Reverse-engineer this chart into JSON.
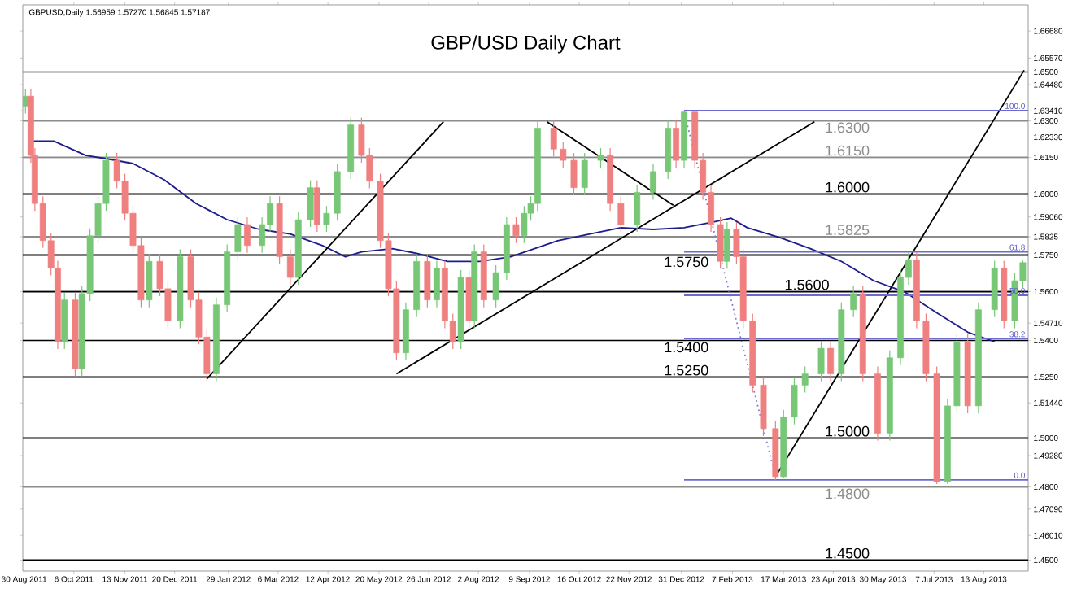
{
  "chart_data": {
    "type": "candlestick",
    "title": "GBP/USD Daily Chart",
    "annotations": [
      "GBPUSD,Daily  1.56959 1.57270 1.56845 1.57187",
      {
        "text": "100.0",
        "x": "2013-09-14",
        "y": 1.6342
      },
      {
        "text": "61.8",
        "x": "2013-09-14",
        "y": 1.5763
      },
      {
        "text": "50.0",
        "x": "2013-09-14",
        "y": 1.5585
      },
      {
        "text": "38.2",
        "x": "2013-09-14",
        "y": 1.5407
      },
      {
        "text": "0.0",
        "x": "2013-09-14",
        "y": 1.4829
      }
    ],
    "marker": "none",
    "xlim": [
      "2011-08-29",
      "2013-09-15"
    ],
    "ylim": [
      1.4455,
      1.6775
    ],
    "xticks": [
      {
        "value": "2011-08-30",
        "label": "30 Aug 2011"
      },
      {
        "value": "2011-10-06",
        "label": "6 Oct 2011"
      },
      {
        "value": "2011-11-13",
        "label": "13 Nov 2011"
      },
      {
        "value": "2011-12-20",
        "label": "20 Dec 2011"
      },
      {
        "value": "2012-01-29",
        "label": "29 Jan 2012"
      },
      {
        "value": "2012-03-06",
        "label": "6 Mar 2012"
      },
      {
        "value": "2012-04-12",
        "label": "12 Apr 2012"
      },
      {
        "value": "2012-05-20",
        "label": "20 May 2012"
      },
      {
        "value": "2012-06-26",
        "label": "26 Jun 2012"
      },
      {
        "value": "2012-08-02",
        "label": "2 Aug 2012"
      },
      {
        "value": "2012-09-09",
        "label": "9 Sep 2012"
      },
      {
        "value": "2012-10-16",
        "label": "16 Oct 2012"
      },
      {
        "value": "2012-11-22",
        "label": "22 Nov 2012"
      },
      {
        "value": "2012-12-31",
        "label": "31 Dec 2012"
      },
      {
        "value": "2013-02-07",
        "label": "7 Feb 2013"
      },
      {
        "value": "2013-03-17",
        "label": "17 Mar 2013"
      },
      {
        "value": "2013-04-23",
        "label": "23 Apr 2013"
      },
      {
        "value": "2013-05-30",
        "label": "30 May 2013"
      },
      {
        "value": "2013-07-07",
        "label": "7 Jul 2013"
      },
      {
        "value": "2013-08-13",
        "label": "13 Aug 2013"
      }
    ],
    "yticks": [
      {
        "value": 1.6668,
        "label": "1.66680"
      },
      {
        "value": 1.6557,
        "label": "1.65570"
      },
      {
        "value": 1.65,
        "label": "1.6500"
      },
      {
        "value": 1.6448,
        "label": "1.64480"
      },
      {
        "value": 1.6341,
        "label": "1.63410"
      },
      {
        "value": 1.63,
        "label": "1.6300"
      },
      {
        "value": 1.6233,
        "label": "1.62330"
      },
      {
        "value": 1.615,
        "label": "1.6150"
      },
      {
        "value": 1.6,
        "label": "1.6000"
      },
      {
        "value": 1.5906,
        "label": "1.59060"
      },
      {
        "value": 1.5825,
        "label": "1.5825"
      },
      {
        "value": 1.575,
        "label": "1.5750"
      },
      {
        "value": 1.56,
        "label": "1.5600"
      },
      {
        "value": 1.5471,
        "label": "1.54710"
      },
      {
        "value": 1.54,
        "label": "1.5400"
      },
      {
        "value": 1.525,
        "label": "1.5250"
      },
      {
        "value": 1.5144,
        "label": "1.51440"
      },
      {
        "value": 1.5,
        "label": "1.5000"
      },
      {
        "value": 1.4928,
        "label": "1.49280"
      },
      {
        "value": 1.48,
        "label": "1.4800"
      },
      {
        "value": 1.4709,
        "label": "1.47090"
      },
      {
        "value": 1.4601,
        "label": "1.46010"
      },
      {
        "value": 1.45,
        "label": "1.4500"
      }
    ],
    "x": [
      "2011-08-31",
      "2011-09-04",
      "2011-09-07",
      "2011-09-13",
      "2011-09-19",
      "2011-09-24",
      "2011-09-29",
      "2011-10-07",
      "2011-10-12",
      "2011-10-18",
      "2011-10-24",
      "2011-10-30",
      "2011-11-07",
      "2011-11-13",
      "2011-11-19",
      "2011-11-25",
      "2011-12-01",
      "2011-12-09",
      "2011-12-15",
      "2011-12-24",
      "2012-01-01",
      "2012-01-07",
      "2012-01-13",
      "2012-01-20",
      "2012-01-28",
      "2012-02-05",
      "2012-02-12",
      "2012-02-23",
      "2012-02-29",
      "2012-03-07",
      "2012-03-15",
      "2012-03-21",
      "2012-03-30",
      "2012-04-04",
      "2012-04-11",
      "2012-04-19",
      "2012-04-29",
      "2012-05-07",
      "2012-05-13",
      "2012-05-21",
      "2012-05-27",
      "2012-06-02",
      "2012-06-09",
      "2012-06-17",
      "2012-06-25",
      "2012-07-02",
      "2012-07-08",
      "2012-07-14",
      "2012-07-20",
      "2012-07-26",
      "2012-07-30",
      "2012-08-06",
      "2012-08-15",
      "2012-08-23",
      "2012-08-30",
      "2012-09-05",
      "2012-09-10",
      "2012-09-15",
      "2012-09-27",
      "2012-10-04",
      "2012-10-12",
      "2012-10-20",
      "2012-11-01",
      "2012-11-08",
      "2012-11-16",
      "2012-11-28",
      "2012-12-10",
      "2012-12-21",
      "2012-12-27",
      "2013-01-02",
      "2013-01-10",
      "2013-01-16",
      "2013-01-22",
      "2013-01-29",
      "2013-02-03",
      "2013-02-10",
      "2013-02-15",
      "2013-02-22",
      "2013-03-02",
      "2013-03-11",
      "2013-03-17",
      "2013-03-25",
      "2013-04-02",
      "2013-04-14",
      "2013-04-21",
      "2013-04-29",
      "2013-05-08",
      "2013-05-15",
      "2013-05-26",
      "2013-06-04",
      "2013-06-12",
      "2013-06-18",
      "2013-06-24",
      "2013-07-01",
      "2013-07-09",
      "2013-07-17",
      "2013-07-24",
      "2013-08-01",
      "2013-08-09",
      "2013-08-21",
      "2013-08-28",
      "2013-09-05",
      "2013-09-11"
    ],
    "ohlc": [
      [
        1.636,
        1.6431,
        1.633,
        1.6401
      ],
      [
        1.6401,
        1.6431,
        1.6128,
        1.6158
      ],
      [
        1.6158,
        1.6188,
        1.5931,
        1.5961
      ],
      [
        1.5961,
        1.5991,
        1.5779,
        1.5809
      ],
      [
        1.5809,
        1.5839,
        1.5667,
        1.5697
      ],
      [
        1.5697,
        1.5727,
        1.5365,
        1.5395
      ],
      [
        1.5395,
        1.5596,
        1.5365,
        1.5566
      ],
      [
        1.5566,
        1.5596,
        1.5253,
        1.5283
      ],
      [
        1.5283,
        1.5622,
        1.5253,
        1.5592
      ],
      [
        1.5592,
        1.5859,
        1.5562,
        1.5829
      ],
      [
        1.5829,
        1.5991,
        1.5799,
        1.5961
      ],
      [
        1.5961,
        1.6168,
        1.5931,
        1.6138
      ],
      [
        1.6138,
        1.6168,
        1.6023,
        1.6053
      ],
      [
        1.6053,
        1.6083,
        1.5891,
        1.5921
      ],
      [
        1.5921,
        1.5951,
        1.5759,
        1.5789
      ],
      [
        1.5789,
        1.5819,
        1.5536,
        1.5566
      ],
      [
        1.5566,
        1.5754,
        1.5536,
        1.5724
      ],
      [
        1.5724,
        1.5754,
        1.5582,
        1.5612
      ],
      [
        1.5612,
        1.5642,
        1.545,
        1.548
      ],
      [
        1.548,
        1.5773,
        1.545,
        1.5743
      ],
      [
        1.5743,
        1.5773,
        1.5536,
        1.5566
      ],
      [
        1.5566,
        1.5596,
        1.5384,
        1.5414
      ],
      [
        1.5414,
        1.5444,
        1.5233,
        1.5263
      ],
      [
        1.5263,
        1.5576,
        1.5233,
        1.5546
      ],
      [
        1.5546,
        1.5793,
        1.5516,
        1.5763
      ],
      [
        1.5763,
        1.5905,
        1.5733,
        1.5875
      ],
      [
        1.5875,
        1.5905,
        1.5759,
        1.5789
      ],
      [
        1.5789,
        1.5905,
        1.5759,
        1.5875
      ],
      [
        1.5875,
        1.5991,
        1.5845,
        1.5961
      ],
      [
        1.5961,
        1.5991,
        1.5713,
        1.5743
      ],
      [
        1.5743,
        1.5773,
        1.5628,
        1.5658
      ],
      [
        1.5658,
        1.5925,
        1.5628,
        1.5895
      ],
      [
        1.5895,
        1.6056,
        1.5865,
        1.6026
      ],
      [
        1.6026,
        1.6056,
        1.5845,
        1.5875
      ],
      [
        1.5875,
        1.5951,
        1.5845,
        1.5921
      ],
      [
        1.5921,
        1.6122,
        1.5891,
        1.6092
      ],
      [
        1.6092,
        1.6313,
        1.6062,
        1.6283
      ],
      [
        1.6283,
        1.6313,
        1.6128,
        1.6158
      ],
      [
        1.6158,
        1.6188,
        1.6023,
        1.6053
      ],
      [
        1.6053,
        1.6083,
        1.5779,
        1.5809
      ],
      [
        1.5809,
        1.5839,
        1.5582,
        1.5612
      ],
      [
        1.5612,
        1.5642,
        1.5319,
        1.5349
      ],
      [
        1.5349,
        1.5556,
        1.5319,
        1.5526
      ],
      [
        1.5526,
        1.5754,
        1.5496,
        1.5724
      ],
      [
        1.5724,
        1.5754,
        1.5536,
        1.5566
      ],
      [
        1.5566,
        1.5727,
        1.5536,
        1.5697
      ],
      [
        1.5697,
        1.5727,
        1.545,
        1.548
      ],
      [
        1.548,
        1.551,
        1.5365,
        1.5395
      ],
      [
        1.5395,
        1.5688,
        1.5365,
        1.5658
      ],
      [
        1.5658,
        1.5688,
        1.545,
        1.548
      ],
      [
        1.548,
        1.5793,
        1.545,
        1.5763
      ],
      [
        1.5763,
        1.5793,
        1.5536,
        1.5566
      ],
      [
        1.5566,
        1.5708,
        1.5536,
        1.5678
      ],
      [
        1.5678,
        1.5905,
        1.5648,
        1.5875
      ],
      [
        1.5875,
        1.5905,
        1.5799,
        1.5829
      ],
      [
        1.5829,
        1.5951,
        1.5799,
        1.5921
      ],
      [
        1.5921,
        1.5991,
        1.5891,
        1.5961
      ],
      [
        1.5961,
        1.63,
        1.5931,
        1.627
      ],
      [
        1.627,
        1.63,
        1.6154,
        1.6184
      ],
      [
        1.6184,
        1.6214,
        1.6108,
        1.6138
      ],
      [
        1.6138,
        1.6168,
        1.5996,
        1.6026
      ],
      [
        1.6026,
        1.6168,
        1.5996,
        1.6138
      ],
      [
        1.6138,
        1.6188,
        1.6108,
        1.6158
      ],
      [
        1.6158,
        1.6188,
        1.5931,
        1.5961
      ],
      [
        1.5961,
        1.5991,
        1.5845,
        1.5875
      ],
      [
        1.5875,
        1.6037,
        1.5845,
        1.6007
      ],
      [
        1.6007,
        1.6122,
        1.5977,
        1.6092
      ],
      [
        1.6092,
        1.63,
        1.6062,
        1.627
      ],
      [
        1.627,
        1.63,
        1.6108,
        1.6138
      ],
      [
        1.6138,
        1.6342,
        1.6108,
        1.6336
      ],
      [
        1.6336,
        1.6342,
        1.6108,
        1.6138
      ],
      [
        1.6138,
        1.6168,
        1.5977,
        1.6007
      ],
      [
        1.6007,
        1.6037,
        1.5845,
        1.5875
      ],
      [
        1.5875,
        1.5905,
        1.5694,
        1.5724
      ],
      [
        1.5724,
        1.5885,
        1.5694,
        1.5855
      ],
      [
        1.5855,
        1.5885,
        1.5713,
        1.5743
      ],
      [
        1.5743,
        1.5773,
        1.545,
        1.548
      ],
      [
        1.548,
        1.551,
        1.5187,
        1.5217
      ],
      [
        1.5217,
        1.5247,
        1.5009,
        1.5039
      ],
      [
        1.5039,
        1.5069,
        1.4829,
        1.4842
      ],
      [
        1.4842,
        1.5116,
        1.4835,
        1.5086
      ],
      [
        1.5086,
        1.5247,
        1.5056,
        1.5217
      ],
      [
        1.5217,
        1.5293,
        1.5187,
        1.5263
      ],
      [
        1.5263,
        1.5398,
        1.5233,
        1.5368
      ],
      [
        1.5368,
        1.5398,
        1.5233,
        1.5263
      ],
      [
        1.5263,
        1.5556,
        1.5233,
        1.5526
      ],
      [
        1.5526,
        1.5622,
        1.5496,
        1.5592
      ],
      [
        1.5592,
        1.5622,
        1.5233,
        1.5263
      ],
      [
        1.5263,
        1.5293,
        1.499,
        1.502
      ],
      [
        1.502,
        1.5359,
        1.499,
        1.5329
      ],
      [
        1.5329,
        1.5688,
        1.5299,
        1.5658
      ],
      [
        1.5658,
        1.576,
        1.5628,
        1.573
      ],
      [
        1.573,
        1.576,
        1.545,
        1.548
      ],
      [
        1.548,
        1.551,
        1.5233,
        1.5263
      ],
      [
        1.5263,
        1.5293,
        1.4812,
        1.4822
      ],
      [
        1.4822,
        1.5162,
        1.4812,
        1.5132
      ],
      [
        1.5132,
        1.5425,
        1.5102,
        1.5395
      ],
      [
        1.5395,
        1.5425,
        1.5102,
        1.5132
      ],
      [
        1.5132,
        1.5556,
        1.5102,
        1.5526
      ],
      [
        1.5526,
        1.5727,
        1.5496,
        1.5697
      ],
      [
        1.5697,
        1.5727,
        1.545,
        1.548
      ],
      [
        1.548,
        1.5675,
        1.545,
        1.5645
      ],
      [
        1.5645,
        1.5727,
        1.5615,
        1.5719
      ]
    ],
    "colors": [
      "#77c777",
      "#f08080",
      "#f08080",
      "#f08080",
      "#f08080",
      "#f08080",
      "#77c777",
      "#f08080",
      "#77c777",
      "#77c777",
      "#77c777",
      "#77c777",
      "#f08080",
      "#f08080",
      "#f08080",
      "#f08080",
      "#77c777",
      "#f08080",
      "#f08080",
      "#77c777",
      "#f08080",
      "#f08080",
      "#f08080",
      "#77c777",
      "#77c777",
      "#77c777",
      "#f08080",
      "#77c777",
      "#77c777",
      "#f08080",
      "#f08080",
      "#77c777",
      "#77c777",
      "#f08080",
      "#77c777",
      "#77c777",
      "#77c777",
      "#f08080",
      "#f08080",
      "#f08080",
      "#f08080",
      "#f08080",
      "#77c777",
      "#77c777",
      "#f08080",
      "#77c777",
      "#f08080",
      "#f08080",
      "#77c777",
      "#f08080",
      "#77c777",
      "#f08080",
      "#77c777",
      "#77c777",
      "#f08080",
      "#77c777",
      "#77c777",
      "#77c777",
      "#f08080",
      "#f08080",
      "#f08080",
      "#77c777",
      "#77c777",
      "#f08080",
      "#f08080",
      "#77c777",
      "#77c777",
      "#77c777",
      "#f08080",
      "#77c777",
      "#f08080",
      "#f08080",
      "#f08080",
      "#f08080",
      "#77c777",
      "#f08080",
      "#f08080",
      "#f08080",
      "#f08080",
      "#f08080",
      "#77c777",
      "#77c777",
      "#77c777",
      "#77c777",
      "#f08080",
      "#77c777",
      "#77c777",
      "#f08080",
      "#f08080",
      "#77c777",
      "#77c777",
      "#77c777",
      "#f08080",
      "#f08080",
      "#f08080",
      "#77c777",
      "#77c777",
      "#f08080",
      "#77c777",
      "#77c777",
      "#f08080",
      "#77c777",
      "#77c777"
    ],
    "series": [
      {
        "type": "line",
        "color": "#1c1c8c",
        "x": [
          "2011-09-04",
          "2011-09-21",
          "2011-10-15",
          "2011-10-30",
          "2011-11-19",
          "2011-12-12",
          "2012-01-05",
          "2012-01-28",
          "2012-02-21",
          "2012-03-15",
          "2012-04-08",
          "2012-04-25",
          "2012-05-07",
          "2012-05-30",
          "2012-06-17",
          "2012-07-10",
          "2012-08-03",
          "2012-08-26",
          "2012-09-30",
          "2012-10-24",
          "2012-11-16",
          "2012-12-10",
          "2013-01-02",
          "2013-01-26",
          "2013-02-06",
          "2013-02-18",
          "2013-03-14",
          "2013-04-06",
          "2013-04-29",
          "2013-05-23",
          "2013-06-15",
          "2013-07-09",
          "2013-08-01",
          "2013-08-21"
        ],
        "values": [
          1.6217,
          1.6217,
          1.6158,
          1.6145,
          1.6125,
          1.6059,
          1.5961,
          1.5895,
          1.5855,
          1.5836,
          1.5789,
          1.5743,
          1.5763,
          1.5776,
          1.5757,
          1.5724,
          1.5724,
          1.5743,
          1.5809,
          1.5836,
          1.5862,
          1.5855,
          1.5862,
          1.5888,
          1.5901,
          1.5862,
          1.5822,
          1.5776,
          1.5724,
          1.5645,
          1.5599,
          1.5513,
          1.5434,
          1.5395
        ]
      },
      {
        "type": "line",
        "color": "#000000",
        "x": [
          "2012-01-13",
          "2012-07-07"
        ],
        "values": [
          1.5243,
          1.6296
        ]
      },
      {
        "type": "line",
        "color": "#000000",
        "x": [
          "2012-06-02",
          "2013-04-09"
        ],
        "values": [
          1.5263,
          1.6296
        ]
      },
      {
        "type": "line",
        "color": "#000000",
        "x": [
          "2012-09-22",
          "2012-12-25"
        ],
        "values": [
          1.6296,
          1.5954
        ]
      },
      {
        "type": "line",
        "color": "#7b7bd6",
        "line_style": "dotted",
        "x": [
          "2013-01-02",
          "2013-03-11"
        ],
        "values": [
          1.6336,
          1.4842
        ]
      },
      {
        "type": "line",
        "color": "#000000",
        "x": [
          "2013-03-11",
          "2013-09-12"
        ],
        "values": [
          1.4842,
          1.6507
        ]
      },
      {
        "type": "line",
        "color": "#6a6ad0",
        "x": [
          "2013-01-02",
          "2013-09-15"
        ],
        "values": [
          1.6342,
          1.6342
        ]
      },
      {
        "type": "line",
        "color": "#6a6ad0",
        "x": [
          "2013-01-02",
          "2013-09-15"
        ],
        "values": [
          1.5763,
          1.5763
        ]
      },
      {
        "type": "line",
        "color": "#6a6ad0",
        "x": [
          "2013-01-02",
          "2013-09-15"
        ],
        "values": [
          1.5585,
          1.5585
        ]
      },
      {
        "type": "line",
        "color": "#6a6ad0",
        "x": [
          "2013-01-02",
          "2013-09-15"
        ],
        "values": [
          1.5407,
          1.5407
        ]
      },
      {
        "type": "line",
        "color": "#6a6ad0",
        "x": [
          "2013-01-02",
          "2013-09-15"
        ],
        "values": [
          1.4829,
          1.4829
        ]
      }
    ],
    "ref_lines": [
      {
        "axis": "y",
        "value": 1.65,
        "color": "#8c8c8c"
      },
      {
        "axis": "y",
        "value": 1.63,
        "label": "1.6300",
        "color": "#8c8c8c"
      },
      {
        "axis": "y",
        "value": 1.615,
        "label": "1.6150",
        "color": "#8c8c8c"
      },
      {
        "axis": "y",
        "value": 1.6,
        "label": "1.6000",
        "color": "#000000"
      },
      {
        "axis": "y",
        "value": 1.5825,
        "label": "1.5825",
        "color": "#8c8c8c"
      },
      {
        "axis": "y",
        "value": 1.575,
        "label": "1.5750",
        "color": "#000000"
      },
      {
        "axis": "y",
        "value": 1.56,
        "label": "1.5600",
        "color": "#000000"
      },
      {
        "axis": "y",
        "value": 1.54,
        "label": "1.5400",
        "color": "#000000"
      },
      {
        "axis": "y",
        "value": 1.525,
        "label": "1.5250",
        "color": "#000000"
      },
      {
        "axis": "y",
        "value": 1.5,
        "label": "1.5000",
        "color": "#000000"
      },
      {
        "axis": "y",
        "value": 1.48,
        "label": "1.4800",
        "color": "#8c8c8c"
      },
      {
        "axis": "y",
        "value": 1.45,
        "label": "1.4500",
        "color": "#000000"
      }
    ]
  }
}
